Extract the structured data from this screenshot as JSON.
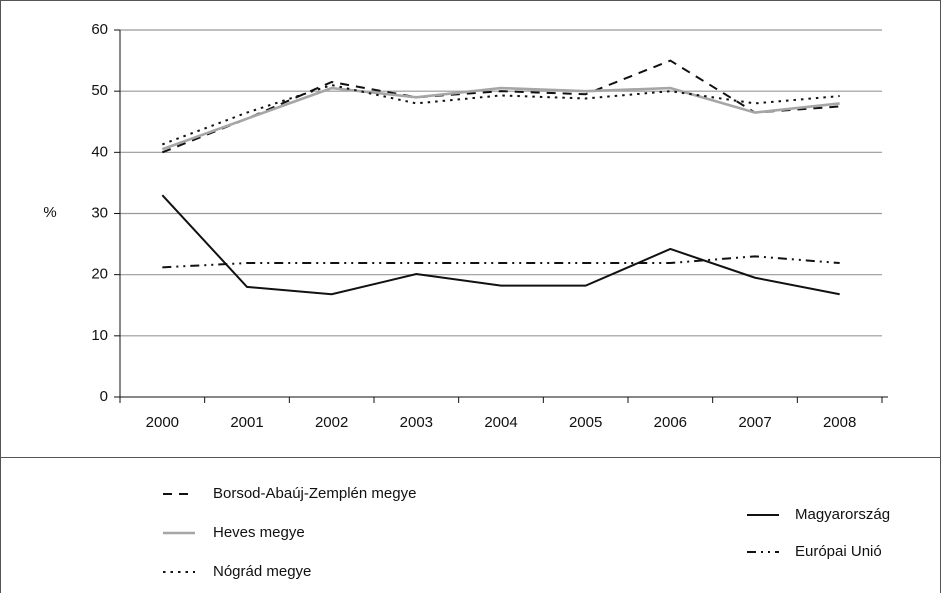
{
  "chart_data": {
    "type": "line",
    "y_label": "%",
    "categories": [
      "2000",
      "2001",
      "2002",
      "2003",
      "2004",
      "2005",
      "2006",
      "2007",
      "2008"
    ],
    "ylim": [
      0,
      60
    ],
    "yticks": [
      0,
      10,
      20,
      30,
      40,
      50,
      60
    ],
    "grid": true,
    "series": [
      {
        "name": "Borsod-Abaúj-Zemplén megye",
        "color": "#111111",
        "line_style": "dashed",
        "values": [
          40,
          45.5,
          51.5,
          49,
          50,
          49.5,
          55,
          46.5,
          47.5
        ]
      },
      {
        "name": "Heves megye",
        "color": "#a6a6a6",
        "line_style": "solid",
        "values": [
          40.5,
          45.5,
          50.5,
          49,
          50.5,
          50,
          50.5,
          46.5,
          48
        ]
      },
      {
        "name": "Nógrád megye",
        "color": "#111111",
        "line_style": "dotted",
        "values": [
          41.3,
          46.5,
          51,
          48,
          49.3,
          48.8,
          50,
          48,
          49.2
        ]
      },
      {
        "name": "Magyarország",
        "color": "#111111",
        "line_style": "solid",
        "values": [
          33,
          18,
          16.8,
          20.1,
          18.2,
          18.2,
          24.2,
          19.5,
          16.8
        ]
      },
      {
        "name": "Európai Unió",
        "color": "#111111",
        "line_style": "dash-dot",
        "values": [
          21.2,
          21.9,
          21.9,
          21.9,
          21.9,
          21.9,
          21.9,
          23,
          21.9
        ]
      }
    ]
  }
}
